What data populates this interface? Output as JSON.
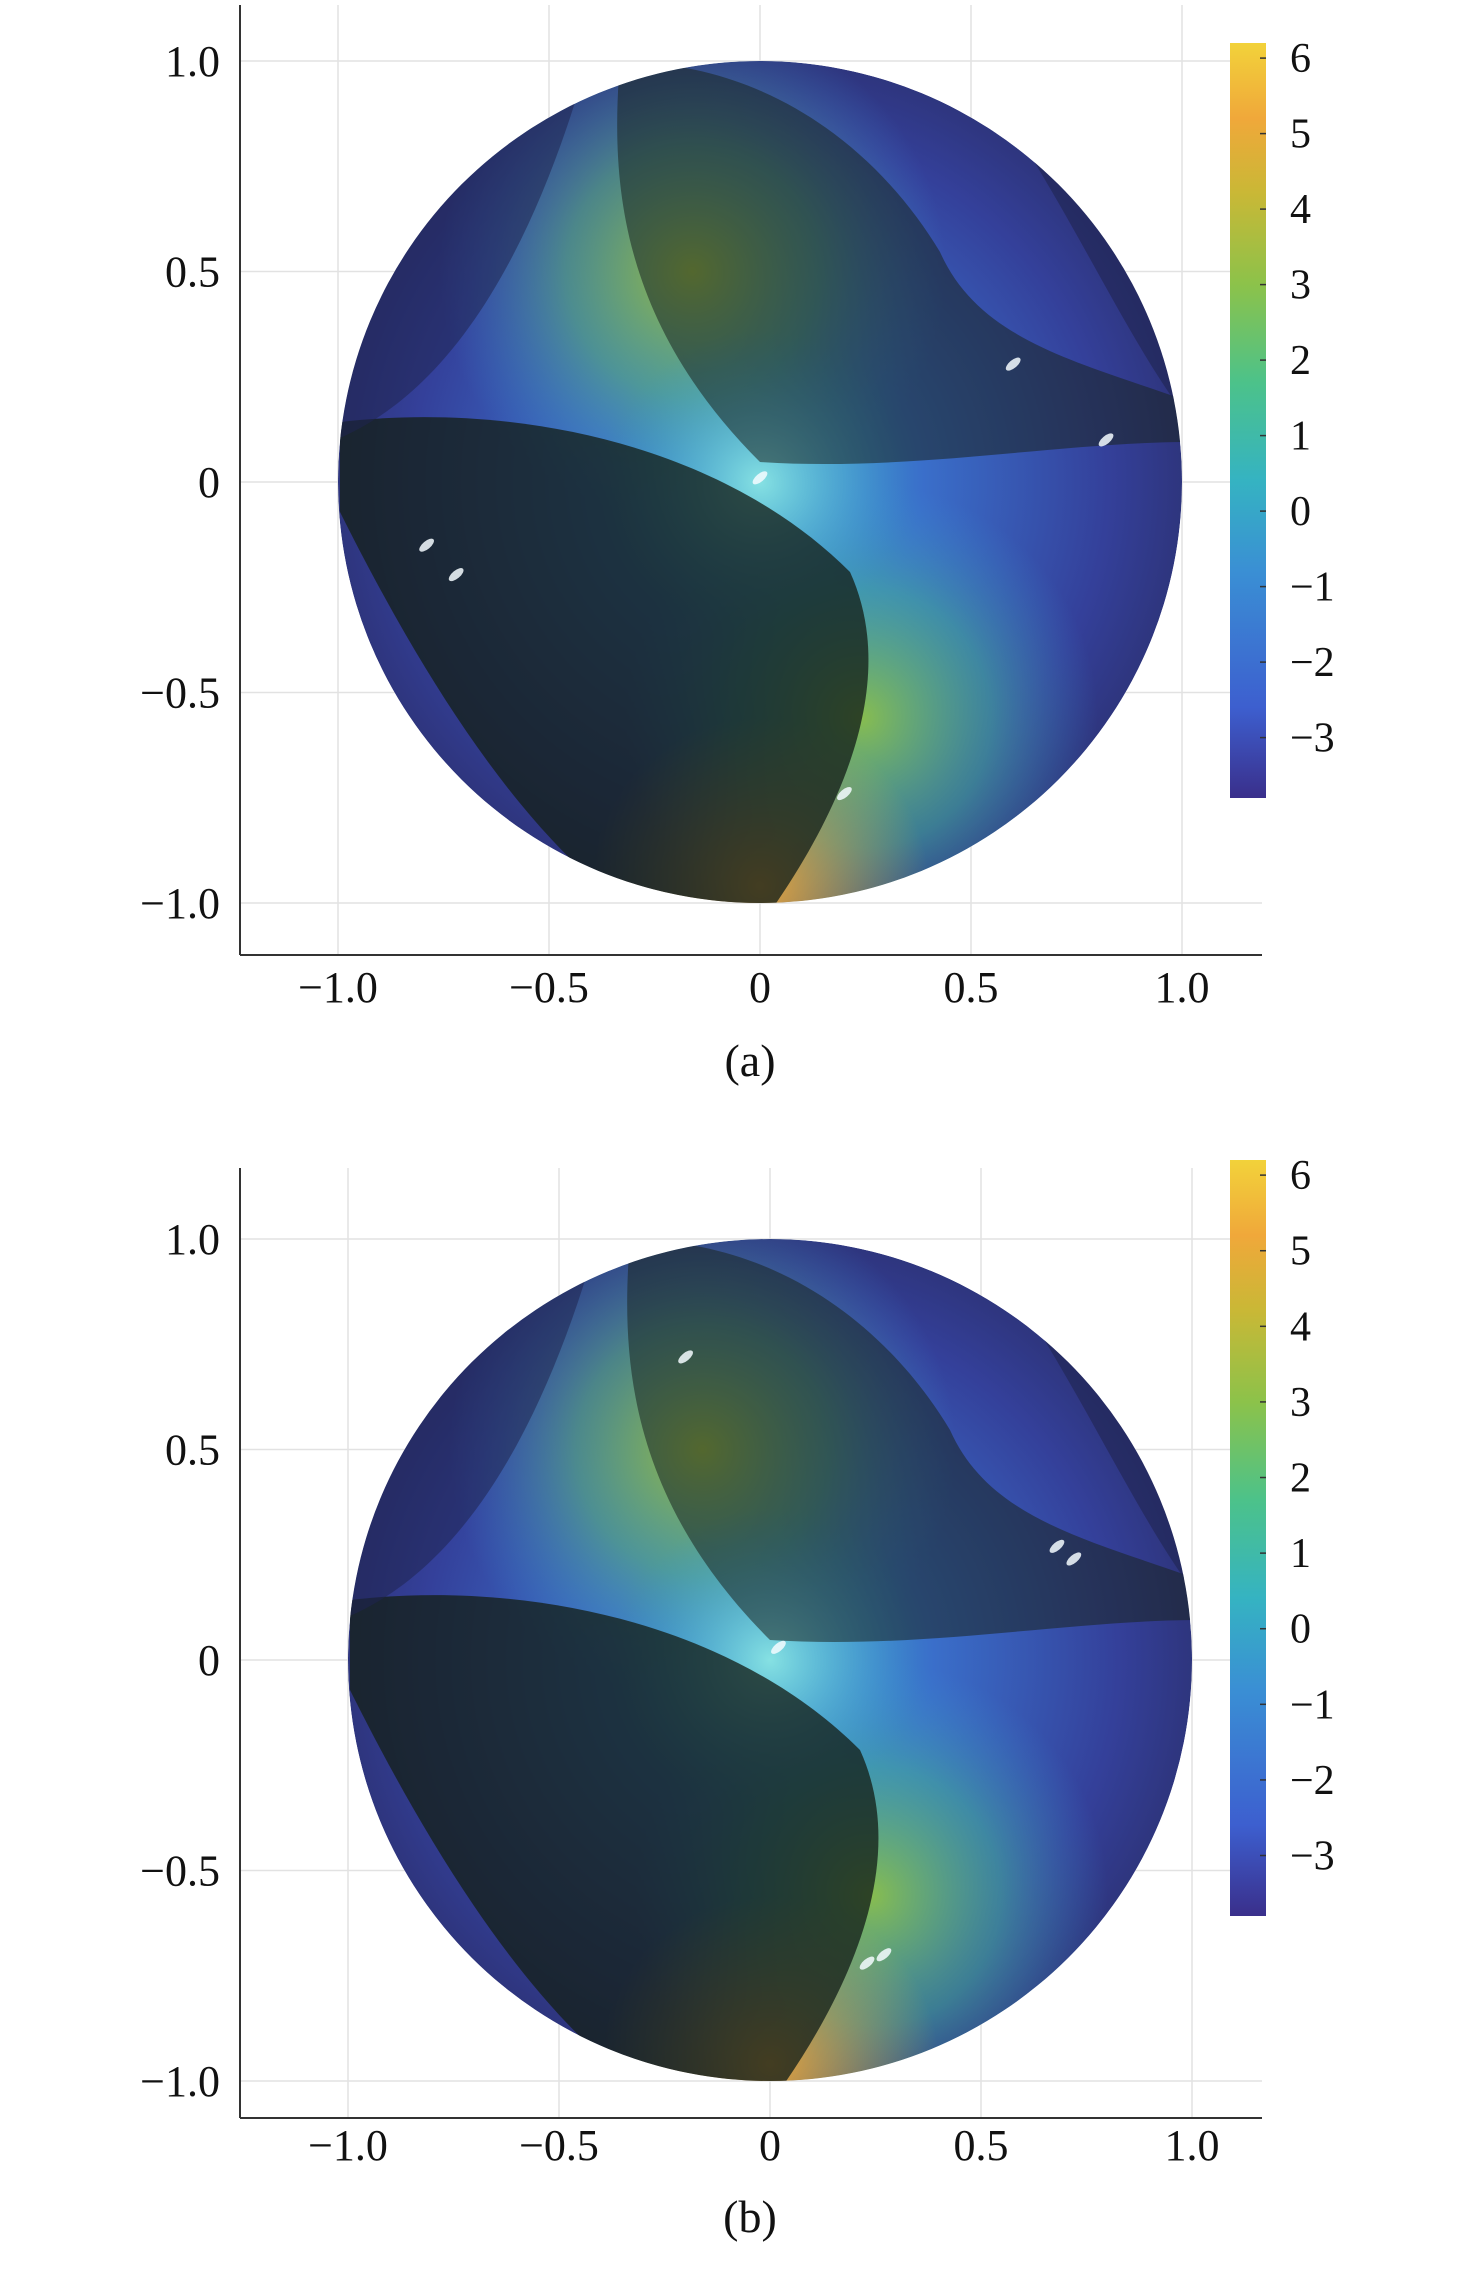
{
  "chart_data": [
    {
      "type": "heatmap",
      "caption": "(a)",
      "plot": "surface on unit disk",
      "xlim": [
        -1.2,
        1.2
      ],
      "ylim": [
        -1.12,
        1.12
      ],
      "x_ticks": [
        "−1.0",
        "−0.5",
        "0",
        "0.5",
        "1.0"
      ],
      "x_tick_values": [
        -1.0,
        -0.5,
        0,
        0.5,
        1.0
      ],
      "y_ticks": [
        "1.0",
        "0.5",
        "0",
        "−0.5",
        "−1.0"
      ],
      "y_tick_values": [
        1.0,
        0.5,
        0,
        -0.5,
        -1.0
      ],
      "grid": true,
      "colorbar": {
        "range": [
          -3.8,
          6.2
        ],
        "ticks": [
          "6",
          "5",
          "4",
          "3",
          "2",
          "1",
          "0",
          "−1",
          "−2",
          "−3"
        ],
        "tick_values": [
          6,
          5,
          4,
          3,
          2,
          1,
          0,
          -1,
          -2,
          -3
        ],
        "colormap": [
          "#3a2f8b",
          "#3d5fcf",
          "#3a8fd4",
          "#35b3c2",
          "#4cc28a",
          "#8cc24a",
          "#c9b836",
          "#f0a83a",
          "#f2d23a"
        ]
      },
      "shading": "dark shadow band running diagonally through the center"
    },
    {
      "type": "heatmap",
      "caption": "(b)",
      "plot": "surface on unit disk",
      "xlim": [
        -1.2,
        1.2
      ],
      "ylim": [
        -1.12,
        1.12
      ],
      "x_ticks": [
        "−1.0",
        "−0.5",
        "0",
        "0.5",
        "1.0"
      ],
      "x_tick_values": [
        -1.0,
        -0.5,
        0,
        0.5,
        1.0
      ],
      "y_ticks": [
        "1.0",
        "0.5",
        "0",
        "−0.5",
        "−1.0"
      ],
      "y_tick_values": [
        1.0,
        0.5,
        0,
        -0.5,
        -1.0
      ],
      "grid": true,
      "colorbar": {
        "range": [
          -3.8,
          6.2
        ],
        "ticks": [
          "6",
          "5",
          "4",
          "3",
          "2",
          "1",
          "0",
          "−1",
          "−2",
          "−3"
        ],
        "tick_values": [
          6,
          5,
          4,
          3,
          2,
          1,
          0,
          -1,
          -2,
          -3
        ],
        "colormap": [
          "#3a2f8b",
          "#3d5fcf",
          "#3a8fd4",
          "#35b3c2",
          "#4cc28a",
          "#8cc24a",
          "#c9b836",
          "#f0a83a",
          "#f2d23a"
        ]
      },
      "shading": "dark shadow band running diagonally through the center"
    }
  ]
}
